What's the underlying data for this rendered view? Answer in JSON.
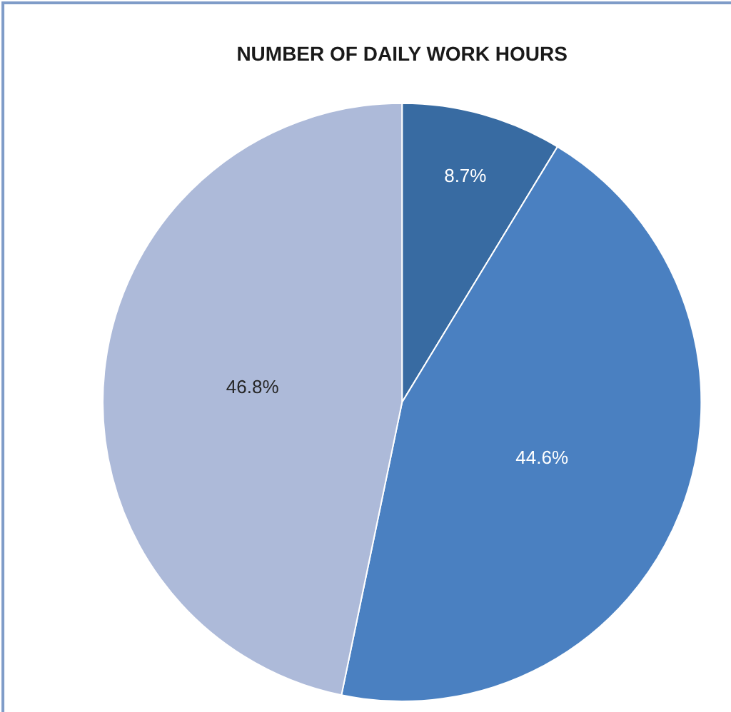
{
  "chart_data": {
    "type": "pie",
    "title": "NUMBER OF DAILY WORK HOURS",
    "categories": [
      null,
      null,
      null
    ],
    "values": [
      8.7,
      44.6,
      46.8
    ],
    "colors": [
      "#386ba2",
      "#4a80c1",
      "#adbad9"
    ],
    "value_labels": [
      "8.7%",
      "44.6%",
      "46.8%"
    ],
    "legend": false
  }
}
